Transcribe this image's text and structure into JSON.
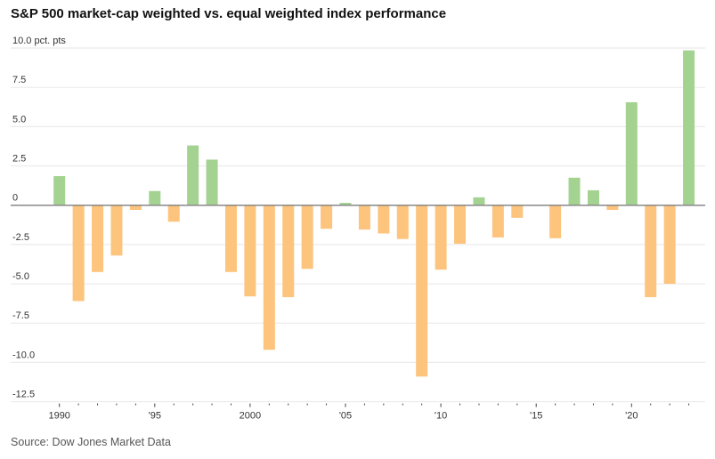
{
  "chart_data": {
    "type": "bar",
    "title": "S&P 500 market-cap weighted vs. equal weighted index performance",
    "ylabel": "pct. pts",
    "xlabel": "",
    "ylim": [
      -12.5,
      10.0
    ],
    "y_ticks": [
      10.0,
      7.5,
      5.0,
      2.5,
      0,
      -2.5,
      -5.0,
      -7.5,
      -10.0,
      -12.5
    ],
    "y_tick_labels": [
      "10.0",
      "7.5",
      "5.0",
      "2.5",
      "0",
      "-2.5",
      "-5.0",
      "-7.5",
      "-10.0",
      "-12.5"
    ],
    "y_unit_label": "pct. pts",
    "x_tick_labels": [
      {
        "year": 1990,
        "label": "1990"
      },
      {
        "year": 1995,
        "label": "'95"
      },
      {
        "year": 2000,
        "label": "2000"
      },
      {
        "year": 2005,
        "label": "'05"
      },
      {
        "year": 2010,
        "label": "'10"
      },
      {
        "year": 2015,
        "label": "'15"
      },
      {
        "year": 2020,
        "label": "'20"
      }
    ],
    "grid": true,
    "positive_color": "#a3d291",
    "negative_color": "#fdc47d",
    "categories": [
      1990,
      1991,
      1992,
      1993,
      1994,
      1995,
      1996,
      1997,
      1998,
      1999,
      2000,
      2001,
      2002,
      2003,
      2004,
      2005,
      2006,
      2007,
      2008,
      2009,
      2010,
      2011,
      2012,
      2013,
      2014,
      2015,
      2016,
      2017,
      2018,
      2019,
      2020,
      2021,
      2022,
      2023
    ],
    "values": [
      1.85,
      -6.1,
      -4.25,
      -3.2,
      -0.3,
      0.9,
      -1.05,
      3.8,
      2.9,
      -4.25,
      -5.8,
      -9.2,
      -5.85,
      -4.05,
      -1.5,
      0.15,
      -1.55,
      -1.8,
      -2.15,
      -10.9,
      -4.1,
      -2.45,
      0.5,
      -2.05,
      -0.8,
      -0.05,
      -2.1,
      1.75,
      0.95,
      -0.3,
      6.55,
      -5.85,
      -5.0,
      9.85
    ]
  },
  "source": "Source: Dow Jones Market Data"
}
